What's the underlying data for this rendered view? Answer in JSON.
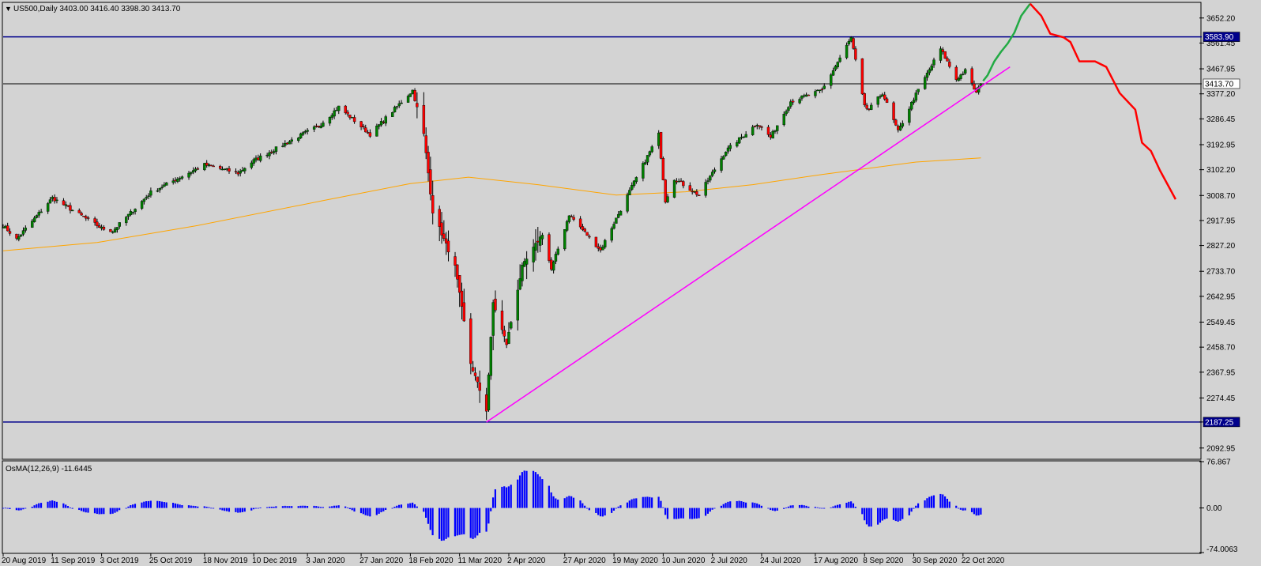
{
  "chart_data": [
    {
      "type": "candlestick",
      "panel": "main",
      "header": "US500,Daily  3403.00 3416.40 3398.30 3413.70",
      "symbol": "US500,Daily",
      "last_bar": {
        "open": 3403.0,
        "high": 3416.4,
        "low": 3398.3,
        "close": 3413.7
      },
      "current_price_label": "3413.70",
      "ylim": [
        2055,
        3706
      ],
      "y_ticks": [
        "3652.20",
        "3561.45",
        "3467.95",
        "3377.20",
        "3286.45",
        "3192.95",
        "3102.20",
        "3008.70",
        "2917.95",
        "2827.20",
        "2733.70",
        "2642.95",
        "2549.45",
        "2458.70",
        "2367.95",
        "2274.45",
        "2187.25",
        "2092.95"
      ],
      "x_ticks": [
        "20 Aug 2019",
        "11 Sep 2019",
        "3 Oct 2019",
        "25 Oct 2019",
        "18 Nov 2019",
        "10 Dec 2019",
        "3 Jan 2020",
        "27 Jan 2020",
        "18 Feb 2020",
        "11 Mar 2020",
        "2 Apr 2020",
        "27 Apr 2020",
        "19 May 2020",
        "10 Jun 2020",
        "2 Jul 2020",
        "24 Jul 2020",
        "17 Aug 2020",
        "8 Sep 2020",
        "30 Sep 2020",
        "22 Oct 2020"
      ],
      "close_anchors": [
        [
          "2019-08-20",
          2900
        ],
        [
          "2019-08-26",
          2850
        ],
        [
          "2019-09-11",
          3000
        ],
        [
          "2019-10-03",
          2890
        ],
        [
          "2019-10-08",
          2880
        ],
        [
          "2019-10-25",
          3020
        ],
        [
          "2019-11-18",
          3120
        ],
        [
          "2019-12-03",
          3090
        ],
        [
          "2019-12-10",
          3135
        ],
        [
          "2020-01-03",
          3240
        ],
        [
          "2020-01-08",
          3260
        ],
        [
          "2020-01-17",
          3330
        ],
        [
          "2020-01-31",
          3230
        ],
        [
          "2020-02-19",
          3390
        ],
        [
          "2020-02-24",
          3230
        ],
        [
          "2020-02-28",
          2950
        ],
        [
          "2020-03-09",
          2750
        ],
        [
          "2020-03-16",
          2400
        ],
        [
          "2020-03-23",
          2230
        ],
        [
          "2020-03-26",
          2620
        ],
        [
          "2020-04-01",
          2470
        ],
        [
          "2020-04-08",
          2750
        ],
        [
          "2020-04-17",
          2870
        ],
        [
          "2020-04-21",
          2740
        ],
        [
          "2020-04-29",
          2940
        ],
        [
          "2020-05-13",
          2810
        ],
        [
          "2020-05-27",
          3040
        ],
        [
          "2020-06-08",
          3230
        ],
        [
          "2020-06-11",
          2990
        ],
        [
          "2020-06-15",
          3070
        ],
        [
          "2020-06-26",
          3010
        ],
        [
          "2020-07-08",
          3170
        ],
        [
          "2020-07-22",
          3270
        ],
        [
          "2020-07-28",
          3220
        ],
        [
          "2020-08-06",
          3350
        ],
        [
          "2020-08-20",
          3390
        ],
        [
          "2020-09-02",
          3580
        ],
        [
          "2020-09-08",
          3330
        ],
        [
          "2020-09-10",
          3320
        ],
        [
          "2020-09-16",
          3380
        ],
        [
          "2020-09-23",
          3240
        ],
        [
          "2020-09-30",
          3360
        ],
        [
          "2020-10-12",
          3540
        ],
        [
          "2020-10-19",
          3430
        ],
        [
          "2020-10-23",
          3460
        ],
        [
          "2020-10-28",
          3380
        ],
        [
          "2020-10-30",
          3413.7
        ]
      ],
      "moving_average": {
        "color": "#FFA500",
        "points": [
          [
            "2019-08-20",
            2808
          ],
          [
            "2019-10-01",
            2838
          ],
          [
            "2019-11-15",
            2900
          ],
          [
            "2020-01-10",
            2990
          ],
          [
            "2020-02-18",
            3052
          ],
          [
            "2020-03-15",
            3075
          ],
          [
            "2020-04-15",
            3048
          ],
          [
            "2020-05-20",
            3010
          ],
          [
            "2020-06-20",
            3022
          ],
          [
            "2020-07-20",
            3048
          ],
          [
            "2020-08-20",
            3085
          ],
          [
            "2020-10-01",
            3130
          ],
          [
            "2020-10-30",
            3145
          ]
        ]
      },
      "horizontal_levels": [
        {
          "value": 3583.9,
          "label": "3583.90",
          "color": "#00008B"
        },
        {
          "value": 2187.25,
          "label": "2187.25",
          "color": "#00008B"
        },
        {
          "value": 3413.7,
          "color": "#000000"
        }
      ],
      "trendline": {
        "color": "#FF00FF",
        "points": [
          [
            "2020-03-23",
            2187
          ],
          [
            "2020-11-12",
            3475
          ]
        ]
      },
      "forecast_up": {
        "color": "#22AA44",
        "points": [
          [
            "2020-10-31",
            3424
          ],
          [
            "2020-11-02",
            3445
          ],
          [
            "2020-11-05",
            3495
          ],
          [
            "2020-11-08",
            3530
          ],
          [
            "2020-11-11",
            3560
          ],
          [
            "2020-11-14",
            3600
          ],
          [
            "2020-11-17",
            3660
          ],
          [
            "2020-11-21",
            3704
          ]
        ]
      },
      "forecast_down": {
        "color": "#FF0000",
        "points": [
          [
            "2020-11-21",
            3704
          ],
          [
            "2020-11-26",
            3660
          ],
          [
            "2020-11-30",
            3595
          ],
          [
            "2020-12-06",
            3582
          ],
          [
            "2020-12-09",
            3565
          ],
          [
            "2020-12-13",
            3495
          ],
          [
            "2020-12-20",
            3495
          ],
          [
            "2020-12-25",
            3475
          ],
          [
            "2020-12-31",
            3380
          ],
          [
            "2021-01-07",
            3320
          ],
          [
            "2021-01-10",
            3200
          ],
          [
            "2021-01-14",
            3170
          ],
          [
            "2021-01-18",
            3100
          ],
          [
            "2021-01-22",
            3040
          ],
          [
            "2021-01-25",
            2995
          ]
        ]
      }
    },
    {
      "type": "bar",
      "panel": "oscillator",
      "header": "OsMA(12,26,9) -11.6445",
      "indicator": "OsMA(12,26,9)",
      "current_value": -11.6445,
      "ylim": [
        -74.0063,
        76.867
      ],
      "y_ticks": [
        "76.867",
        "0.00",
        "-74.0063"
      ],
      "color": "#0000FF"
    }
  ],
  "colors": {
    "background": "#D3D3D3",
    "bull": "#008000",
    "bear": "#FF0000",
    "wick": "#000000",
    "grid_frame": "#000000"
  }
}
